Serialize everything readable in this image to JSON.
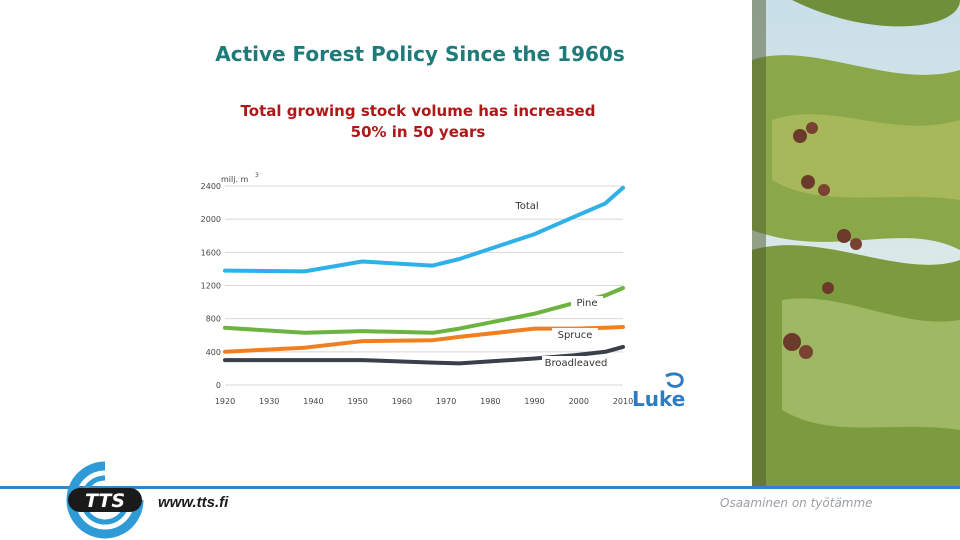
{
  "slide": {
    "title": "Active Forest Policy Since the 1960s",
    "subtitle_line1": "Total growing stock volume has increased",
    "subtitle_line2": "50% in 50 years",
    "footer_tagline": "Osaaminen on työtämme",
    "tts_logo_text": "TTS",
    "tts_url": "www.tts.fi",
    "luke_logo_text": "Luke"
  },
  "colors": {
    "title": "#1f7a7a",
    "subtitle": "#b01818",
    "footer_line": "#2e86c8",
    "tts_blue": "#2e9bd6",
    "luke_blue": "#2e7cc4"
  },
  "chart_data": {
    "type": "line",
    "title": "",
    "ylabel": "milj. m³",
    "ylabel_main": "milj. m",
    "ylabel_exp": "3",
    "xlabel": "",
    "xlim": [
      1920,
      2010
    ],
    "ylim": [
      0,
      2400
    ],
    "x_ticks": [
      1920,
      1930,
      1940,
      1950,
      1960,
      1970,
      1980,
      1990,
      2000,
      2010
    ],
    "y_ticks": [
      0,
      400,
      800,
      1200,
      1600,
      2000,
      2400
    ],
    "grid": true,
    "series": [
      {
        "name": "Total",
        "color": "#2eb0e8",
        "points": [
          [
            1920,
            1380
          ],
          [
            1938,
            1370
          ],
          [
            1951,
            1490
          ],
          [
            1967,
            1440
          ],
          [
            1973,
            1520
          ],
          [
            1990,
            1820
          ],
          [
            1999,
            2030
          ],
          [
            2006,
            2190
          ],
          [
            2013,
            2380
          ]
        ]
      },
      {
        "name": "Pine",
        "color": "#6cb33f",
        "points": [
          [
            1920,
            690
          ],
          [
            1938,
            630
          ],
          [
            1951,
            650
          ],
          [
            1967,
            630
          ],
          [
            1973,
            680
          ],
          [
            1990,
            860
          ],
          [
            1999,
            990
          ],
          [
            2006,
            1080
          ],
          [
            2013,
            1170
          ]
        ]
      },
      {
        "name": "Spruce",
        "color": "#f07f22",
        "points": [
          [
            1920,
            400
          ],
          [
            1938,
            450
          ],
          [
            1951,
            530
          ],
          [
            1967,
            540
          ],
          [
            1973,
            580
          ],
          [
            1990,
            680
          ],
          [
            1999,
            680
          ],
          [
            2006,
            690
          ],
          [
            2013,
            700
          ]
        ]
      },
      {
        "name": "Broadleaved",
        "color": "#3a3f4a",
        "points": [
          [
            1920,
            300
          ],
          [
            1938,
            300
          ],
          [
            1951,
            300
          ],
          [
            1967,
            270
          ],
          [
            1973,
            260
          ],
          [
            1990,
            320
          ],
          [
            1999,
            360
          ],
          [
            2006,
            400
          ],
          [
            2013,
            460
          ]
        ]
      }
    ]
  }
}
